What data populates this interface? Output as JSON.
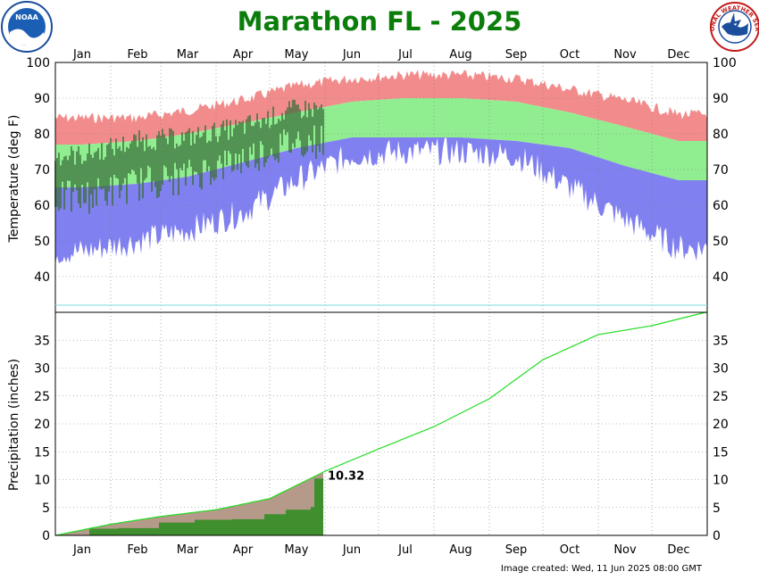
{
  "chart_data": [
    {
      "type": "area",
      "title": "Marathon FL - 2025",
      "ylabel": "Temperature (deg F)",
      "ylim": [
        30,
        100
      ],
      "yticks": [
        40,
        50,
        60,
        70,
        80,
        90,
        100
      ],
      "months": [
        "Jan",
        "Feb",
        "Mar",
        "Apr",
        "May",
        "Jun",
        "Jul",
        "Aug",
        "Sep",
        "Oct",
        "Nov",
        "Dec"
      ],
      "grid": true,
      "normals": {
        "months": [
          "Jan",
          "Feb",
          "Mar",
          "Apr",
          "May",
          "Jun",
          "Jul",
          "Aug",
          "Sep",
          "Oct",
          "Nov",
          "Dec"
        ],
        "normal_high": [
          77,
          78,
          80,
          83,
          86,
          89,
          90,
          90,
          89,
          86,
          82,
          78
        ],
        "normal_low": [
          65,
          66,
          68,
          72,
          76,
          79,
          79,
          79,
          78,
          76,
          71,
          67
        ],
        "record_high": [
          86,
          86,
          88,
          91,
          95,
          97,
          98,
          98,
          97,
          94,
          91,
          87
        ],
        "record_low": [
          43,
          46,
          49,
          54,
          63,
          70,
          71,
          71,
          70,
          61,
          52,
          44
        ],
        "colors": {
          "record_high": "#f28c8c",
          "normal_range": "#90ee90",
          "record_low": "#8080f0",
          "observed": "#3a6e3a"
        }
      },
      "observed_2025": {
        "period_dates": [
          "2025-01-01",
          "2025-05-31"
        ],
        "months": [
          "Jan",
          "Feb",
          "Mar",
          "Apr",
          "May"
        ],
        "avg_high": [
          74,
          78,
          79,
          82,
          87
        ],
        "avg_low": [
          62,
          66,
          68,
          73,
          78
        ]
      }
    },
    {
      "type": "line",
      "ylabel": "Precipitation (inches)",
      "ylim": [
        0,
        40
      ],
      "yticks": [
        0,
        5,
        10,
        15,
        20,
        25,
        30,
        35
      ],
      "months": [
        "Jan",
        "Feb",
        "Mar",
        "Apr",
        "May",
        "Jun",
        "Jul",
        "Aug",
        "Sep",
        "Oct",
        "Nov",
        "Dec"
      ],
      "normal_cumulative": {
        "x": [
          "2025-01-01",
          "2025-02-01",
          "2025-03-01",
          "2025-04-01",
          "2025-05-01",
          "2025-06-01",
          "2025-07-01",
          "2025-08-01",
          "2025-09-01",
          "2025-10-01",
          "2025-11-01",
          "2025-12-01",
          "2025-12-31"
        ],
        "y": [
          0,
          2.0,
          3.4,
          4.6,
          6.6,
          11.5,
          15.5,
          19.5,
          24.5,
          31.5,
          36.0,
          37.6,
          40.0
        ],
        "color": "#22dd22"
      },
      "observed_cumulative": {
        "x": [
          "2025-01-01",
          "2025-01-20",
          "2025-02-05",
          "2025-02-28",
          "2025-03-20",
          "2025-04-10",
          "2025-04-28",
          "2025-05-10",
          "2025-05-24",
          "2025-05-26",
          "2025-05-31"
        ],
        "y": [
          0,
          1.2,
          1.3,
          2.3,
          2.8,
          2.9,
          3.8,
          4.6,
          5.1,
          10.2,
          10.32
        ],
        "color": "#3f8f2f"
      },
      "normal_to_date_fill": "#b59a8a",
      "total_label": "10.32"
    }
  ],
  "footer": "Image created: Wed, 11 Jun 2025 08:00 GMT",
  "logos": {
    "noaa": {
      "name": "noaa-logo-icon",
      "text": "NOAA"
    },
    "nws": {
      "name": "national-weather-service-logo-icon",
      "text": "NATIONAL WEATHER SERVICE"
    }
  }
}
